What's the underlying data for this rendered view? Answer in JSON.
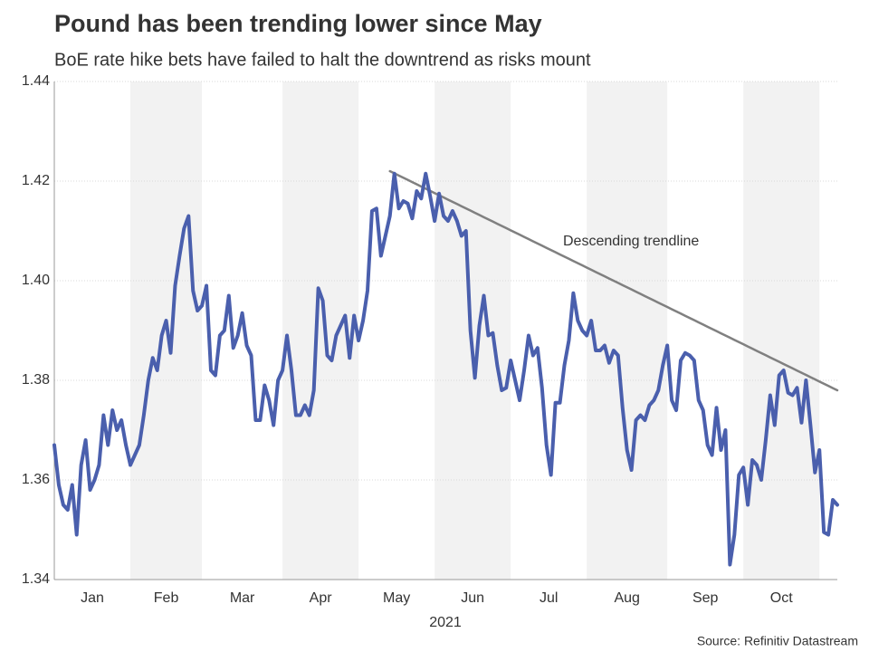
{
  "chart_data": {
    "type": "line",
    "title": "Pound has been trending lower since May",
    "subtitle": "BoE rate hike bets have failed to halt the downtrend as risks mount",
    "xlabel": "2021",
    "source": "Source: Refinitiv Datastream",
    "color": "#4a5fad",
    "band_color": "#f2f2f2",
    "grid": true,
    "ylim": [
      1.34,
      1.44
    ],
    "yticks": [
      1.34,
      1.36,
      1.38,
      {
        "value": 1.4,
        "label": "1.40"
      },
      1.42,
      1.44
    ],
    "categories": [
      "Jan",
      null,
      null,
      null,
      null,
      null,
      null,
      null,
      null,
      null,
      null,
      null,
      null,
      null,
      null,
      null,
      null,
      "Feb",
      null,
      null,
      null,
      null,
      null,
      null,
      null,
      null,
      null,
      null,
      null,
      null,
      null,
      null,
      null,
      "Mar",
      null,
      null,
      null,
      null,
      null,
      null,
      null,
      null,
      null,
      null,
      null,
      null,
      null,
      null,
      null,
      null,
      null,
      "Apr",
      null,
      null,
      null,
      null,
      null,
      null,
      null,
      null,
      null,
      null,
      null,
      null,
      null,
      null,
      null,
      null,
      "May",
      null,
      null,
      null,
      null,
      null,
      null,
      null,
      null,
      null,
      null,
      null,
      null,
      null,
      null,
      null,
      null,
      "Jun",
      null,
      null,
      null,
      null,
      null,
      null,
      null,
      null,
      null,
      null,
      null,
      null,
      null,
      null,
      null,
      null,
      "Jul",
      null,
      null,
      null,
      null,
      null,
      null,
      null,
      null,
      null,
      null,
      null,
      null,
      null,
      null,
      null,
      null,
      "Aug",
      null,
      null,
      null,
      null,
      null,
      null,
      null,
      null,
      null,
      null,
      null,
      null,
      null,
      null,
      null,
      null,
      null,
      "Sep",
      null,
      null,
      null,
      null,
      null,
      null,
      null,
      null,
      null,
      null,
      null,
      null,
      null,
      null,
      null,
      null,
      "Oct",
      null,
      null,
      null,
      null,
      null,
      null,
      null,
      null,
      null,
      null,
      null,
      null,
      null,
      null,
      null,
      null,
      null,
      null,
      null,
      null,
      null
    ],
    "values": [
      1.367,
      1.359,
      1.355,
      1.354,
      1.359,
      1.349,
      1.363,
      1.368,
      1.358,
      1.36,
      1.363,
      1.373,
      1.367,
      1.374,
      1.37,
      1.372,
      1.367,
      1.363,
      1.365,
      1.367,
      1.373,
      1.38,
      1.3845,
      1.382,
      1.389,
      1.392,
      1.3855,
      1.399,
      1.405,
      1.4105,
      1.413,
      1.398,
      1.394,
      1.395,
      1.399,
      1.382,
      1.381,
      1.389,
      1.39,
      1.397,
      1.3865,
      1.389,
      1.3935,
      1.387,
      1.385,
      1.372,
      1.372,
      1.379,
      1.376,
      1.371,
      1.38,
      1.382,
      1.389,
      1.382,
      1.373,
      1.373,
      1.375,
      1.373,
      1.378,
      1.3985,
      1.396,
      1.385,
      1.384,
      1.389,
      1.391,
      1.393,
      1.3845,
      1.393,
      1.388,
      1.392,
      1.398,
      1.414,
      1.4145,
      1.405,
      1.409,
      1.413,
      1.4215,
      1.4145,
      1.416,
      1.4155,
      1.4125,
      1.418,
      1.4165,
      1.4215,
      1.417,
      1.412,
      1.4175,
      1.413,
      1.412,
      1.414,
      1.412,
      1.409,
      1.41,
      1.39,
      1.3805,
      1.391,
      1.397,
      1.389,
      1.3895,
      1.383,
      1.378,
      1.3785,
      1.384,
      1.38,
      1.376,
      1.382,
      1.389,
      1.385,
      1.3865,
      1.3785,
      1.367,
      1.361,
      1.3755,
      1.3755,
      1.383,
      1.388,
      1.3975,
      1.392,
      1.39,
      1.389,
      1.392,
      1.386,
      1.386,
      1.387,
      1.3835,
      1.386,
      1.385,
      1.3745,
      1.366,
      1.362,
      1.372,
      1.373,
      1.372,
      1.375,
      1.376,
      1.378,
      1.383,
      1.387,
      1.376,
      1.374,
      1.384,
      1.3855,
      1.385,
      1.384,
      1.376,
      1.374,
      1.367,
      1.365,
      1.3745,
      1.366,
      1.37,
      1.343,
      1.349,
      1.361,
      1.3625,
      1.355,
      1.364,
      1.363,
      1.36,
      1.368,
      1.377,
      1.371,
      1.381,
      1.382,
      1.3775,
      1.377,
      1.3785,
      1.3715,
      1.38,
      1.371,
      1.3615,
      1.366,
      1.3495,
      1.349,
      1.356,
      1.355
    ],
    "trendline": {
      "label": "Descending trendline",
      "color": "#808080",
      "values": [
        null,
        null,
        null,
        null,
        null,
        null,
        null,
        null,
        null,
        null,
        null,
        null,
        null,
        null,
        null,
        null,
        null,
        null,
        null,
        null,
        null,
        null,
        null,
        null,
        null,
        null,
        null,
        null,
        null,
        null,
        null,
        null,
        null,
        null,
        null,
        null,
        null,
        null,
        null,
        null,
        null,
        null,
        null,
        null,
        null,
        null,
        null,
        null,
        null,
        null,
        null,
        null,
        null,
        null,
        null,
        null,
        null,
        null,
        null,
        null,
        null,
        null,
        null,
        null,
        null,
        null,
        null,
        null,
        null,
        null,
        null,
        null,
        null,
        null,
        null,
        1.422,
        1.42156,
        1.42112,
        1.42068,
        1.42024,
        1.4198,
        1.41936,
        1.41892,
        1.41848,
        1.41804,
        1.4176,
        1.41716,
        1.41672,
        1.41628,
        1.41584,
        1.4154,
        1.41496,
        1.41452,
        1.41408,
        1.41364,
        1.4132,
        1.41276,
        1.41232,
        1.41188,
        1.41144,
        1.411,
        1.41056,
        1.41012,
        1.40968,
        1.40924,
        1.4088,
        1.40836,
        1.40792,
        1.40748,
        1.40704,
        1.4066,
        1.40616,
        1.40572,
        1.40528,
        1.40484,
        1.4044,
        1.40396,
        1.40352,
        1.40308,
        1.40264,
        1.4022,
        1.40176,
        1.40132,
        1.40088,
        1.40044,
        1.4,
        1.39956,
        1.39912,
        1.39868,
        1.39824,
        1.3978,
        1.39736,
        1.39692,
        1.39648,
        1.39604,
        1.3956,
        1.39516,
        1.39472,
        1.39428,
        1.39384,
        1.3934,
        1.39296,
        1.39252,
        1.39208,
        1.39164,
        1.3912,
        1.39076,
        1.39032,
        1.38988,
        1.38944,
        1.389,
        1.38856,
        1.38812,
        1.38768,
        1.38724,
        1.3868,
        1.38636,
        1.38592,
        1.38548,
        1.38504,
        1.3846,
        1.38416,
        1.38372,
        1.38328,
        1.38284,
        1.3824,
        1.38196,
        1.38152,
        1.38108,
        1.38064,
        1.3802,
        1.37976,
        1.37932,
        1.37888,
        1.37844,
        1.378
      ]
    }
  }
}
